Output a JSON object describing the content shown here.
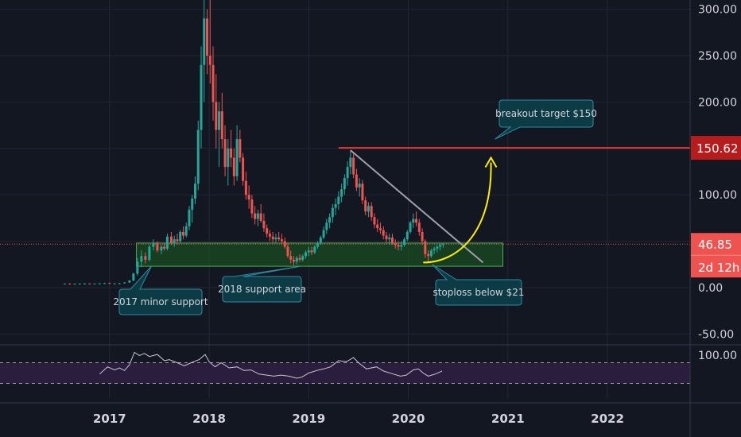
{
  "chart_data": {
    "type": "candlestick",
    "grid": true,
    "colors": {
      "background": "#131722",
      "grid": "#232733",
      "up": "#26a69a",
      "down": "#ef5350",
      "support_zone": "#1b5e20",
      "support_border": "#4caf50",
      "resistance": "#e53935",
      "trendline": "#a0a0a8",
      "projection": "#ffee00",
      "callout_fill": "#0d3b45",
      "callout_border": "#2e8ba0",
      "rsi_line": "#c8c8d0",
      "rsi_band": "#2b1d3d",
      "current_price": "#ef5350",
      "target_label": "#b71c1c"
    },
    "x_axis": {
      "ticks": [
        {
          "label": "2017",
          "value": 2017.0
        },
        {
          "label": "2018",
          "value": 2018.0
        },
        {
          "label": "2019",
          "value": 2019.0
        },
        {
          "label": "2020",
          "value": 2020.0
        },
        {
          "label": "2021",
          "value": 2021.0
        },
        {
          "label": "2022",
          "value": 2022.0
        }
      ],
      "range": [
        2015.9,
        2022.83
      ]
    },
    "y_axis": {
      "ticks": [
        "300.00",
        "250.00",
        "200.00",
        "150.00",
        "100.00",
        "50.00",
        "0.00",
        "-50.00"
      ],
      "range": [
        -60,
        310
      ]
    },
    "rsi": {
      "tick": "100.00",
      "upper_band": 70,
      "lower_band": 30,
      "points": [
        [
          2016.9,
          48
        ],
        [
          2016.98,
          62
        ],
        [
          2017.05,
          56
        ],
        [
          2017.1,
          60
        ],
        [
          2017.15,
          55
        ],
        [
          2017.2,
          66
        ],
        [
          2017.25,
          90
        ],
        [
          2017.3,
          84
        ],
        [
          2017.35,
          88
        ],
        [
          2017.4,
          82
        ],
        [
          2017.48,
          86
        ],
        [
          2017.55,
          74
        ],
        [
          2017.6,
          76
        ],
        [
          2017.68,
          70
        ],
        [
          2017.75,
          64
        ],
        [
          2017.82,
          70
        ],
        [
          2017.9,
          76
        ],
        [
          2017.96,
          86
        ],
        [
          2018.0,
          72
        ],
        [
          2018.06,
          62
        ],
        [
          2018.12,
          70
        ],
        [
          2018.2,
          60
        ],
        [
          2018.28,
          62
        ],
        [
          2018.35,
          55
        ],
        [
          2018.42,
          56
        ],
        [
          2018.5,
          48
        ],
        [
          2018.58,
          46
        ],
        [
          2018.65,
          44
        ],
        [
          2018.72,
          46
        ],
        [
          2018.8,
          44
        ],
        [
          2018.88,
          40
        ],
        [
          2018.93,
          42
        ],
        [
          2019.0,
          50
        ],
        [
          2019.08,
          55
        ],
        [
          2019.15,
          58
        ],
        [
          2019.22,
          62
        ],
        [
          2019.3,
          74
        ],
        [
          2019.38,
          72
        ],
        [
          2019.45,
          80
        ],
        [
          2019.5,
          70
        ],
        [
          2019.58,
          58
        ],
        [
          2019.68,
          62
        ],
        [
          2019.75,
          54
        ],
        [
          2019.85,
          48
        ],
        [
          2019.92,
          44
        ],
        [
          2019.98,
          46
        ],
        [
          2020.05,
          56
        ],
        [
          2020.1,
          58
        ],
        [
          2020.15,
          50
        ],
        [
          2020.2,
          44
        ],
        [
          2020.27,
          48
        ],
        [
          2020.34,
          54
        ]
      ]
    },
    "support_zone": {
      "x0": 2017.27,
      "x1": 2020.95,
      "y0": 23,
      "y1": 48
    },
    "resistance": {
      "y": 150.62,
      "x0": 2019.3
    },
    "trendline": {
      "x0": 2019.42,
      "y0": 148,
      "x1": 2020.75,
      "y1": 27
    },
    "projection": {
      "x0": 2020.15,
      "y0": 27,
      "x1": 2020.83,
      "y1": 140
    },
    "current_price": 46.85,
    "callouts": [
      {
        "text": "2017 minor support",
        "anchor_x": 2017.42,
        "anchor_y": 23
      },
      {
        "text": "2018 support area",
        "anchor_x": 2018.92,
        "anchor_y": 23
      },
      {
        "text": "stoploss below $21",
        "anchor_x": 2020.24,
        "anchor_y": 25
      },
      {
        "text": "breakout target $150",
        "anchor_x": 2020.87,
        "anchor_y": 160
      }
    ],
    "price_labels": {
      "target": "150.62",
      "current": "46.85",
      "countdown": "2d 12h"
    },
    "candles": [
      [
        2016.55,
        4,
        4.5,
        3.5,
        4.2
      ],
      [
        2016.6,
        4.2,
        4.6,
        3.8,
        4.0
      ],
      [
        2016.65,
        4.0,
        4.4,
        3.6,
        4.1
      ],
      [
        2016.7,
        4.1,
        4.5,
        3.8,
        4.3
      ],
      [
        2016.75,
        4.3,
        4.8,
        4.0,
        4.4
      ],
      [
        2016.8,
        4.4,
        4.7,
        4.0,
        4.2
      ],
      [
        2016.85,
        4.2,
        4.6,
        3.9,
        4.3
      ],
      [
        2016.9,
        4.3,
        4.9,
        4.1,
        4.5
      ],
      [
        2016.95,
        4.5,
        5.2,
        4.2,
        4.8
      ],
      [
        2017.0,
        4.8,
        5.5,
        4.5,
        4.2
      ],
      [
        2017.05,
        4.2,
        4.8,
        3.9,
        4.4
      ],
      [
        2017.1,
        4.4,
        5.0,
        4.0,
        4.6
      ],
      [
        2017.15,
        4.6,
        5.8,
        4.3,
        5.5
      ],
      [
        2017.2,
        5.5,
        8,
        5.0,
        7.5
      ],
      [
        2017.24,
        7.5,
        16,
        7.0,
        15
      ],
      [
        2017.28,
        15,
        32,
        13,
        28
      ],
      [
        2017.32,
        28,
        40,
        22,
        34
      ],
      [
        2017.36,
        34,
        38,
        26,
        30
      ],
      [
        2017.4,
        30,
        46,
        28,
        44
      ],
      [
        2017.44,
        44,
        52,
        40,
        48
      ],
      [
        2017.48,
        48,
        50,
        38,
        40
      ],
      [
        2017.52,
        40,
        46,
        36,
        44
      ],
      [
        2017.55,
        44,
        48,
        40,
        42
      ],
      [
        2017.58,
        42,
        58,
        40,
        55
      ],
      [
        2017.62,
        55,
        60,
        46,
        48
      ],
      [
        2017.65,
        48,
        56,
        44,
        52
      ],
      [
        2017.68,
        52,
        58,
        46,
        50
      ],
      [
        2017.71,
        50,
        62,
        48,
        60
      ],
      [
        2017.74,
        60,
        66,
        52,
        56
      ],
      [
        2017.77,
        56,
        70,
        54,
        66
      ],
      [
        2017.8,
        66,
        88,
        62,
        84
      ],
      [
        2017.83,
        84,
        100,
        70,
        96
      ],
      [
        2017.86,
        96,
        120,
        90,
        112
      ],
      [
        2017.89,
        112,
        180,
        105,
        170
      ],
      [
        2017.92,
        170,
        260,
        150,
        240
      ],
      [
        2017.95,
        240,
        310,
        200,
        290
      ],
      [
        2017.98,
        290,
        300,
        230,
        250
      ],
      [
        2018.01,
        250,
        310,
        220,
        240
      ],
      [
        2018.04,
        240,
        260,
        180,
        200
      ],
      [
        2018.07,
        200,
        230,
        150,
        170
      ],
      [
        2018.1,
        170,
        200,
        130,
        190
      ],
      [
        2018.13,
        190,
        210,
        150,
        160
      ],
      [
        2018.16,
        160,
        175,
        120,
        130
      ],
      [
        2018.19,
        130,
        160,
        110,
        150
      ],
      [
        2018.22,
        150,
        170,
        130,
        140
      ],
      [
        2018.25,
        140,
        150,
        110,
        120
      ],
      [
        2018.28,
        120,
        175,
        115,
        160
      ],
      [
        2018.31,
        160,
        170,
        135,
        140
      ],
      [
        2018.34,
        140,
        145,
        110,
        115
      ],
      [
        2018.37,
        115,
        125,
        95,
        100
      ],
      [
        2018.4,
        100,
        110,
        85,
        95
      ],
      [
        2018.43,
        95,
        100,
        75,
        80
      ],
      [
        2018.46,
        80,
        88,
        68,
        74
      ],
      [
        2018.49,
        74,
        84,
        66,
        80
      ],
      [
        2018.52,
        80,
        90,
        70,
        72
      ],
      [
        2018.55,
        72,
        80,
        60,
        64
      ],
      [
        2018.58,
        64,
        68,
        54,
        58
      ],
      [
        2018.61,
        58,
        62,
        50,
        55
      ],
      [
        2018.64,
        55,
        60,
        48,
        52
      ],
      [
        2018.67,
        52,
        58,
        48,
        54
      ],
      [
        2018.7,
        54,
        60,
        50,
        52
      ],
      [
        2018.73,
        52,
        58,
        46,
        50
      ],
      [
        2018.76,
        50,
        54,
        42,
        44
      ],
      [
        2018.79,
        44,
        48,
        32,
        34
      ],
      [
        2018.82,
        34,
        40,
        26,
        30
      ],
      [
        2018.85,
        30,
        34,
        24,
        28
      ],
      [
        2018.88,
        28,
        34,
        25,
        32
      ],
      [
        2018.91,
        32,
        36,
        28,
        30
      ],
      [
        2018.94,
        30,
        36,
        28,
        34
      ],
      [
        2018.97,
        34,
        40,
        31,
        38
      ],
      [
        2019.0,
        38,
        44,
        34,
        40
      ],
      [
        2019.03,
        40,
        44,
        35,
        38
      ],
      [
        2019.06,
        38,
        46,
        36,
        44
      ],
      [
        2019.09,
        44,
        50,
        42,
        48
      ],
      [
        2019.12,
        48,
        56,
        46,
        54
      ],
      [
        2019.15,
        54,
        66,
        52,
        62
      ],
      [
        2019.18,
        62,
        74,
        58,
        70
      ],
      [
        2019.21,
        70,
        80,
        64,
        76
      ],
      [
        2019.24,
        76,
        90,
        70,
        86
      ],
      [
        2019.27,
        86,
        96,
        78,
        90
      ],
      [
        2019.3,
        90,
        104,
        84,
        98
      ],
      [
        2019.33,
        98,
        112,
        92,
        106
      ],
      [
        2019.36,
        106,
        122,
        100,
        118
      ],
      [
        2019.39,
        118,
        136,
        110,
        130
      ],
      [
        2019.42,
        130,
        148,
        122,
        140
      ],
      [
        2019.45,
        140,
        146,
        118,
        122
      ],
      [
        2019.48,
        122,
        128,
        104,
        108
      ],
      [
        2019.51,
        108,
        118,
        98,
        112
      ],
      [
        2019.54,
        112,
        116,
        90,
        94
      ],
      [
        2019.57,
        94,
        98,
        78,
        82
      ],
      [
        2019.6,
        82,
        92,
        76,
        88
      ],
      [
        2019.63,
        88,
        92,
        72,
        76
      ],
      [
        2019.66,
        76,
        80,
        64,
        68
      ],
      [
        2019.69,
        68,
        74,
        60,
        64
      ],
      [
        2019.72,
        64,
        70,
        58,
        62
      ],
      [
        2019.75,
        62,
        66,
        52,
        56
      ],
      [
        2019.78,
        56,
        60,
        48,
        52
      ],
      [
        2019.81,
        52,
        58,
        46,
        54
      ],
      [
        2019.84,
        54,
        58,
        46,
        48
      ],
      [
        2019.87,
        48,
        52,
        42,
        46
      ],
      [
        2019.9,
        46,
        50,
        40,
        44
      ],
      [
        2019.93,
        44,
        50,
        40,
        46
      ],
      [
        2019.96,
        46,
        54,
        44,
        52
      ],
      [
        2019.99,
        52,
        62,
        50,
        60
      ],
      [
        2020.02,
        60,
        72,
        58,
        70
      ],
      [
        2020.05,
        70,
        80,
        64,
        74
      ],
      [
        2020.08,
        74,
        82,
        66,
        70
      ],
      [
        2020.11,
        70,
        74,
        56,
        60
      ],
      [
        2020.14,
        60,
        64,
        46,
        50
      ],
      [
        2020.17,
        50,
        52,
        32,
        36
      ],
      [
        2020.2,
        36,
        40,
        28,
        34
      ],
      [
        2020.23,
        34,
        42,
        32,
        40
      ],
      [
        2020.26,
        40,
        44,
        36,
        42
      ],
      [
        2020.29,
        42,
        46,
        38,
        44
      ],
      [
        2020.32,
        44,
        48,
        40,
        46
      ],
      [
        2020.35,
        46,
        48,
        43,
        46.85
      ]
    ]
  }
}
